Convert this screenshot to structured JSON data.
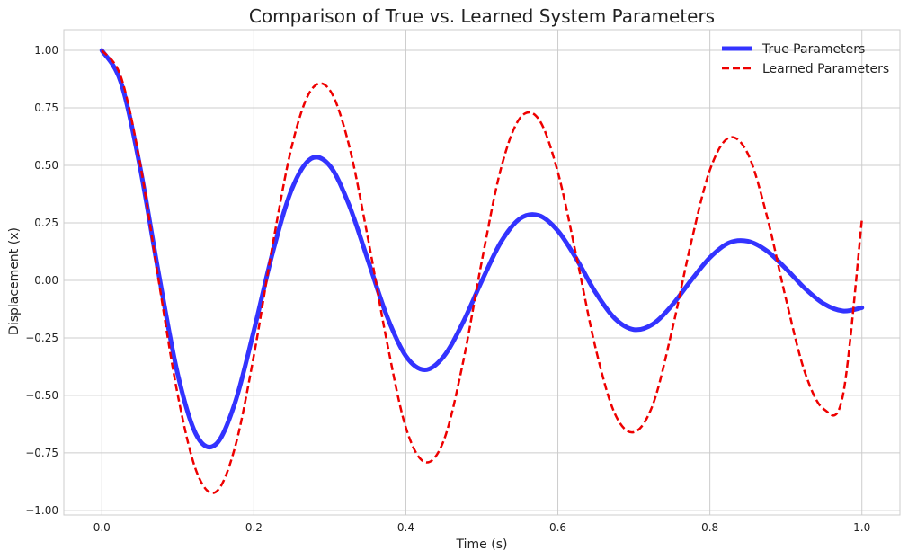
{
  "chart_data": {
    "type": "line",
    "title": "Comparison of True vs. Learned System Parameters",
    "xlabel": "Time (s)",
    "ylabel": "Displacement (x)",
    "xlim": [
      -0.05,
      1.05
    ],
    "ylim": [
      -1.02,
      1.09
    ],
    "xticks": [
      0.0,
      0.2,
      0.4,
      0.6,
      0.8,
      1.0
    ],
    "xtick_labels": [
      "0.0",
      "0.2",
      "0.4",
      "0.6",
      "0.8",
      "1.0"
    ],
    "yticks": [
      1.0,
      0.75,
      0.5,
      0.25,
      0.0,
      -0.25,
      -0.5,
      -0.75,
      -1.0
    ],
    "ytick_labels": [
      "1.00",
      "0.75",
      "0.50",
      "0.25",
      "0.00",
      "−0.25",
      "−0.50",
      "−0.75",
      "−1.00"
    ],
    "grid": true,
    "legend_position": "top-right",
    "x": [
      0.0,
      0.025,
      0.05,
      0.075,
      0.1,
      0.125,
      0.15,
      0.175,
      0.2,
      0.225,
      0.25,
      0.275,
      0.3,
      0.325,
      0.35,
      0.375,
      0.4,
      0.425,
      0.45,
      0.475,
      0.5,
      0.525,
      0.55,
      0.575,
      0.6,
      0.625,
      0.65,
      0.675,
      0.7,
      0.725,
      0.75,
      0.775,
      0.8,
      0.825,
      0.85,
      0.875,
      0.9,
      0.925,
      0.95,
      0.975,
      1.0
    ],
    "series": [
      {
        "name": "True Parameters",
        "color": "#3333ff",
        "style": "solid",
        "values": [
          1.0,
          0.862,
          0.497,
          0.025,
          -0.41,
          -0.676,
          -0.713,
          -0.534,
          -0.219,
          0.124,
          0.397,
          0.529,
          0.498,
          0.33,
          0.089,
          -0.155,
          -0.329,
          -0.389,
          -0.33,
          -0.184,
          -0.002,
          0.166,
          0.268,
          0.282,
          0.215,
          0.09,
          -0.055,
          -0.166,
          -0.214,
          -0.19,
          -0.109,
          -0.001,
          0.099,
          0.163,
          0.17,
          0.128,
          0.051,
          -0.035,
          -0.102,
          -0.133,
          -0.119
        ]
      },
      {
        "name": "Learned Parameters",
        "color": "#ee0000",
        "style": "dashed",
        "values": [
          1.0,
          0.886,
          0.515,
          -0.006,
          -0.5,
          -0.835,
          -0.92,
          -0.728,
          -0.327,
          0.159,
          0.584,
          0.826,
          0.827,
          0.59,
          0.185,
          -0.266,
          -0.64,
          -0.79,
          -0.695,
          -0.36,
          0.085,
          0.485,
          0.705,
          0.7,
          0.47,
          0.095,
          -0.3,
          -0.58,
          -0.66,
          -0.54,
          -0.22,
          0.16,
          0.48,
          0.62,
          0.55,
          0.28,
          -0.08,
          -0.4,
          -0.56,
          -0.5,
          0.265
        ]
      }
    ]
  }
}
